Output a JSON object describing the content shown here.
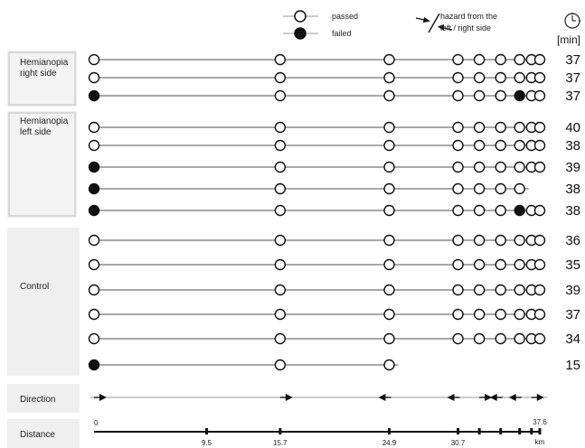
{
  "legend": {
    "passed": "passed",
    "failed": "failed",
    "hazard_line1": "hazard from the",
    "hazard_line2": "left / right side",
    "time_unit": "[min]",
    "time_icon": "clock-icon"
  },
  "groups": [
    {
      "label_lines": [
        "Hemianopia",
        "right side"
      ]
    },
    {
      "label_lines": [
        "Hemianopia",
        "left side"
      ]
    },
    {
      "label_lines": [
        "Control"
      ]
    },
    {
      "label_lines": [
        "Direction"
      ]
    },
    {
      "label_lines": [
        "Distance"
      ]
    }
  ],
  "chart_data": {
    "type": "diagram",
    "x_unit": "km",
    "x_range": [
      0,
      37.6
    ],
    "checkpoints_km": [
      0,
      15.7,
      24.9,
      30.7,
      32.5,
      34.3,
      35.9,
      36.9,
      37.6
    ],
    "participants": [
      {
        "group": "Hemianopia right side",
        "outcomes": [
          "passed",
          "passed",
          "passed",
          "passed",
          "passed",
          "passed",
          "passed",
          "passed",
          "passed"
        ],
        "time_min": "37"
      },
      {
        "group": "Hemianopia right side",
        "outcomes": [
          "passed",
          "passed",
          "passed",
          "passed",
          "passed",
          "passed",
          "passed",
          "passed",
          "passed"
        ],
        "time_min": "37"
      },
      {
        "group": "Hemianopia right side",
        "outcomes": [
          "failed",
          "passed",
          "passed",
          "passed",
          "passed",
          "passed",
          "failed",
          "passed",
          "passed"
        ],
        "time_min": "37"
      },
      {
        "group": "Hemianopia left side",
        "outcomes": [
          "passed",
          "passed",
          "passed",
          "passed",
          "passed",
          "passed",
          "passed",
          "passed",
          "passed"
        ],
        "time_min": "40"
      },
      {
        "group": "Hemianopia left side",
        "outcomes": [
          "passed",
          "passed",
          "passed",
          "passed",
          "passed",
          "passed",
          "passed",
          "passed",
          "passed"
        ],
        "time_min": "38"
      },
      {
        "group": "Hemianopia left side",
        "outcomes": [
          "failed",
          "passed",
          "passed",
          "passed",
          "passed",
          "passed",
          "passed",
          "passed",
          "passed"
        ],
        "time_min": "39"
      },
      {
        "group": "Hemianopia left side",
        "outcomes": [
          "failed",
          "passed",
          "passed",
          "passed",
          "passed",
          "passed",
          "passed"
        ],
        "time_min": "38"
      },
      {
        "group": "Hemianopia left side",
        "outcomes": [
          "failed",
          "passed",
          "passed",
          "passed",
          "passed",
          "passed",
          "failed",
          "passed",
          "passed"
        ],
        "time_min": "38"
      },
      {
        "group": "Control",
        "outcomes": [
          "passed",
          "passed",
          "passed",
          "passed",
          "passed",
          "passed",
          "passed",
          "passed",
          "passed"
        ],
        "time_min": "36"
      },
      {
        "group": "Control",
        "outcomes": [
          "passed",
          "passed",
          "passed",
          "passed",
          "passed",
          "passed",
          "passed",
          "passed",
          "passed"
        ],
        "time_min": "35"
      },
      {
        "group": "Control",
        "outcomes": [
          "passed",
          "passed",
          "passed",
          "passed",
          "passed",
          "passed",
          "passed",
          "passed",
          "passed"
        ],
        "time_min": "39"
      },
      {
        "group": "Control",
        "outcomes": [
          "passed",
          "passed",
          "passed",
          "passed",
          "passed",
          "passed",
          "passed",
          "passed",
          "passed"
        ],
        "time_min": "37"
      },
      {
        "group": "Control",
        "outcomes": [
          "passed",
          "passed",
          "passed",
          "passed",
          "passed",
          "passed",
          "passed",
          "passed",
          "passed"
        ],
        "time_min": "34"
      },
      {
        "group": "Control",
        "outcomes": [
          "failed",
          "passed",
          "passed"
        ],
        "time_min": "15"
      }
    ],
    "direction": [
      {
        "km": 0,
        "dir": "right"
      },
      {
        "km": 15.7,
        "dir": "right"
      },
      {
        "km": 24.9,
        "dir": "left"
      },
      {
        "km": 30.7,
        "dir": "left"
      },
      {
        "km": 32.5,
        "dir": "right"
      },
      {
        "km": 34.3,
        "dir": "left"
      },
      {
        "km": 35.9,
        "dir": "left"
      },
      {
        "km": 36.9,
        "dir": "right"
      }
    ],
    "distance_axis": {
      "tick_labels": [
        {
          "km": 0,
          "label": "0"
        },
        {
          "km": 9.5,
          "label": "9.5"
        },
        {
          "km": 15.7,
          "label": "15.7"
        },
        {
          "km": 24.9,
          "label": "24.9"
        },
        {
          "km": 30.7,
          "label": "30.7"
        },
        {
          "km": 37.6,
          "label": "37.6"
        }
      ],
      "minor_ticks_km": [
        32.5,
        34.3,
        35.9,
        36.9
      ],
      "unit_label": "km"
    }
  }
}
